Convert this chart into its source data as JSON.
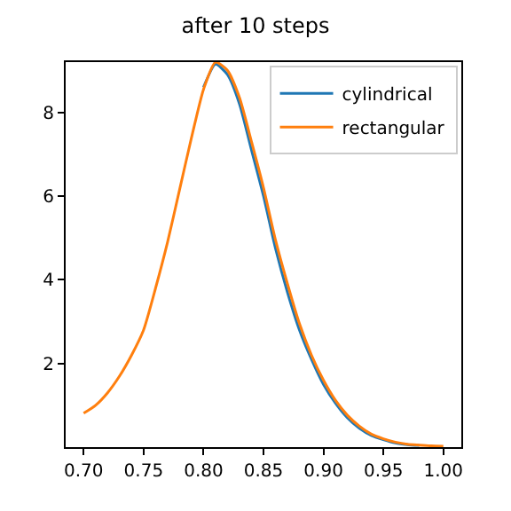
{
  "chart_data": {
    "type": "line",
    "title": "after 10 steps",
    "x": [
      0.7,
      0.71,
      0.72,
      0.73,
      0.74,
      0.75,
      0.76,
      0.77,
      0.78,
      0.79,
      0.8,
      0.81,
      0.82,
      0.83,
      0.84,
      0.85,
      0.86,
      0.87,
      0.88,
      0.89,
      0.9,
      0.91,
      0.92,
      0.93,
      0.94,
      0.95,
      0.96,
      0.97,
      0.98,
      0.99,
      1.0
    ],
    "series": [
      {
        "name": "cylindrical",
        "color": "#1f77b4",
        "values": [
          null,
          null,
          null,
          null,
          null,
          null,
          null,
          null,
          null,
          null,
          8.6,
          9.15,
          8.9,
          8.2,
          7.1,
          6.0,
          4.75,
          3.7,
          2.8,
          2.1,
          1.5,
          1.05,
          0.7,
          0.45,
          0.28,
          0.18,
          0.1,
          0.06,
          0.04,
          null,
          null
        ]
      },
      {
        "name": "rectangular",
        "color": "#ff7f0e",
        "values": [
          0.81,
          1.0,
          1.3,
          1.7,
          2.2,
          2.8,
          3.8,
          4.9,
          6.15,
          7.4,
          8.55,
          9.2,
          9.0,
          8.35,
          7.3,
          6.2,
          4.95,
          3.9,
          2.95,
          2.2,
          1.6,
          1.12,
          0.76,
          0.5,
          0.31,
          0.2,
          0.12,
          0.07,
          0.05,
          0.03,
          0.02
        ]
      }
    ],
    "xlim": [
      0.685,
      1.015
    ],
    "xticks": [
      {
        "value": 0.7,
        "label": "0.70"
      },
      {
        "value": 0.75,
        "label": "0.75"
      },
      {
        "value": 0.8,
        "label": "0.80"
      },
      {
        "value": 0.85,
        "label": "0.85"
      },
      {
        "value": 0.9,
        "label": "0.90"
      },
      {
        "value": 0.95,
        "label": "0.95"
      },
      {
        "value": 1.0,
        "label": "1.00"
      }
    ],
    "ylim": [
      0.0,
      9.2
    ],
    "yticks": [
      2,
      4,
      6,
      8
    ],
    "legend": "top right",
    "marker": "none",
    "line_style": "solid"
  }
}
